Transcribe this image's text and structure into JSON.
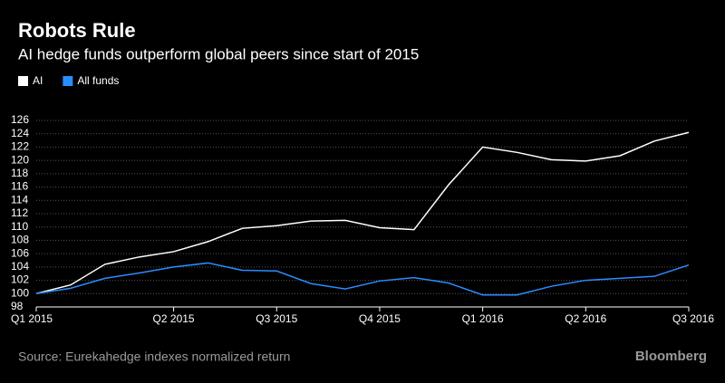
{
  "chart_data": {
    "type": "line",
    "title": "Robots Rule",
    "subtitle": "AI hedge funds outperform global peers since start of 2015",
    "source": "Source: Eurekahedge indexes normalized return",
    "brand": "Bloomberg",
    "categories": [
      "Q1 2015",
      null,
      null,
      null,
      "Q2 2015",
      null,
      null,
      "Q3 2015",
      null,
      null,
      "Q4 2015",
      null,
      null,
      "Q1 2016",
      null,
      null,
      "Q2 2016",
      null,
      null,
      "Q3 2016"
    ],
    "series": [
      {
        "name": "AI",
        "color": "#ffffff",
        "values": [
          100,
          101.3,
          104.4,
          105.5,
          106.3,
          107.8,
          109.8,
          110.2,
          110.9,
          111.0,
          109.9,
          109.6,
          116.3,
          122.0,
          121.2,
          120.1,
          119.9,
          120.7,
          122.9,
          124.2
        ]
      },
      {
        "name": "All funds",
        "color": "#2b8cff",
        "values": [
          100,
          100.8,
          102.3,
          103.1,
          104.0,
          104.6,
          103.5,
          103.4,
          101.5,
          100.7,
          101.9,
          102.4,
          101.6,
          99.8,
          99.8,
          101.1,
          102.0,
          102.3,
          102.6,
          104.3
        ]
      }
    ],
    "ylim": [
      98,
      126
    ],
    "yticks": [
      98,
      100,
      102,
      104,
      106,
      108,
      110,
      112,
      114,
      116,
      118,
      120,
      122,
      124,
      126
    ],
    "grid": true,
    "legend": "top-left"
  }
}
